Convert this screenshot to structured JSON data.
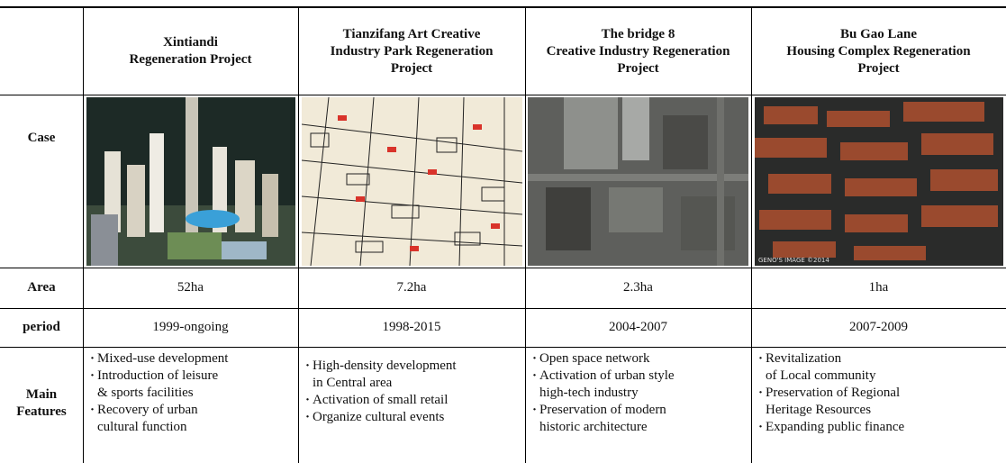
{
  "table": {
    "corner": "Case",
    "columns": [
      [
        "Xintiandi",
        "Regeneration Project"
      ],
      [
        "Tianzifang Art Creative",
        "Industry Park Regeneration",
        "Project"
      ],
      [
        "The bridge 8",
        "Creative Industry Regeneration",
        "Project"
      ],
      [
        "Bu Gao Lane",
        "Housing Complex Regeneration",
        "Project"
      ]
    ],
    "watermark": "GENO'S IMAGE ©2014",
    "rows": [
      {
        "label": "Area",
        "cells": [
          "52ha",
          "7.2ha",
          "2.3ha",
          "1ha"
        ]
      },
      {
        "label": "period",
        "cells": [
          "1999-ongoing",
          "1998-2015",
          "2004-2007",
          "2007-2009"
        ]
      }
    ],
    "features": {
      "label": [
        "Main",
        "Features"
      ],
      "cells": [
        [
          [
            "Mixed-use development"
          ],
          [
            "Introduction of leisure",
            "& sports facilities"
          ],
          [
            "Recovery of urban",
            "cultural function"
          ]
        ],
        [
          [
            "High-density development",
            "in Central area"
          ],
          [
            "Activation of small retail"
          ],
          [
            "Organize cultural events"
          ]
        ],
        [
          [
            "Open space network"
          ],
          [
            "Activation of urban style",
            "high-tech industry"
          ],
          [
            "Preservation of modern",
            "historic architecture"
          ]
        ],
        [
          [
            "Revitalization",
            "of Local community"
          ],
          [
            "Preservation of Regional",
            "Heritage Resources"
          ],
          [
            "Expanding public finance"
          ]
        ]
      ]
    }
  }
}
